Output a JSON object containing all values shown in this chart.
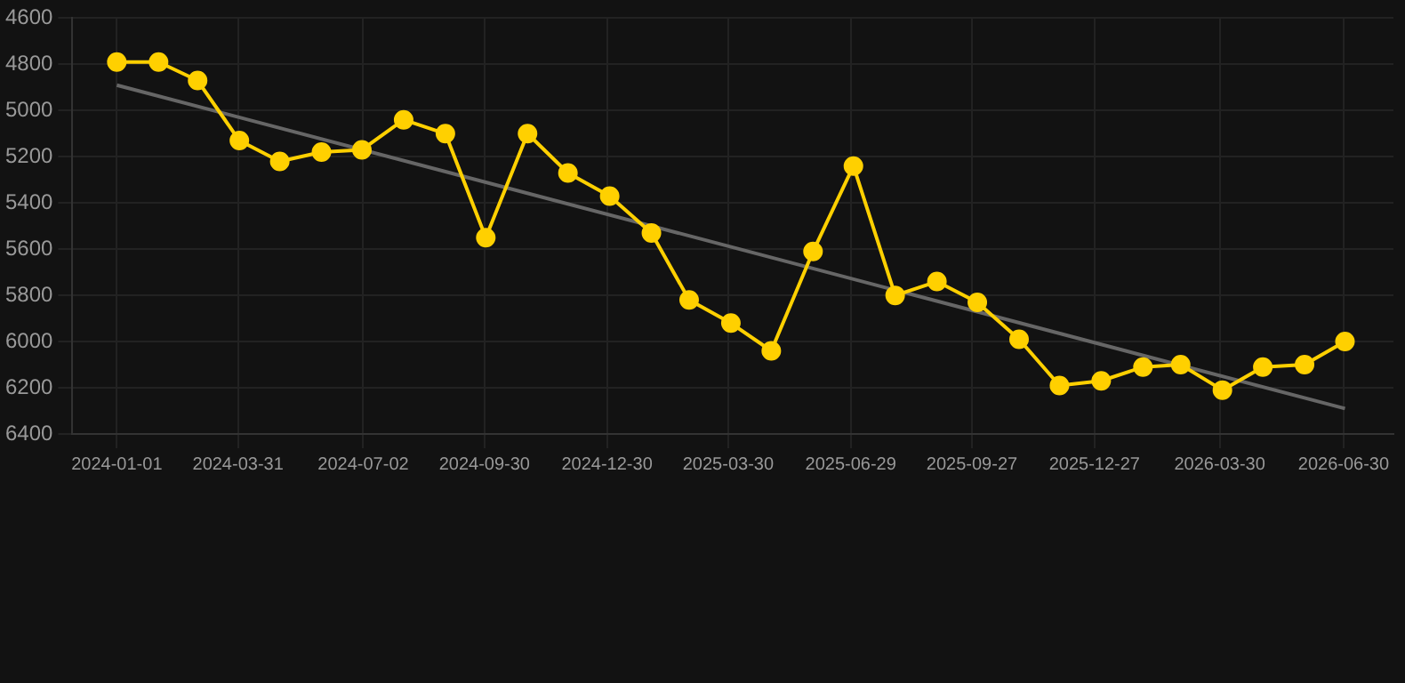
{
  "chart_data": {
    "type": "line",
    "x": [
      "2024-01-01",
      "2024-02-01",
      "2024-03-01",
      "2024-04-01",
      "2024-05-01",
      "2024-06-01",
      "2024-07-01",
      "2024-08-01",
      "2024-09-01",
      "2024-10-01",
      "2024-11-01",
      "2024-12-01",
      "2025-01-01",
      "2025-02-01",
      "2025-03-01",
      "2025-04-01",
      "2025-05-01",
      "2025-06-01",
      "2025-07-01",
      "2025-08-01",
      "2025-09-01",
      "2025-10-01",
      "2025-11-01",
      "2025-12-01",
      "2026-01-01",
      "2026-02-01",
      "2026-03-01",
      "2026-04-01",
      "2026-05-01",
      "2026-06-01",
      "2026-07-01"
    ],
    "series": [
      {
        "color": "#ffd000",
        "marker": "circle",
        "values": [
          4790,
          4790,
          4870,
          5130,
          5220,
          5180,
          5170,
          5040,
          5100,
          5550,
          5100,
          5270,
          5370,
          5530,
          5820,
          5920,
          6040,
          5610,
          5240,
          5800,
          5740,
          5830,
          5990,
          6190,
          6170,
          6110,
          6100,
          6210,
          6110,
          6100,
          6000
        ]
      },
      {
        "type": "line",
        "color": "#666666",
        "marker": "none",
        "x": [
          "2024-01-01",
          "2026-07-01"
        ],
        "values": [
          4890,
          6290
        ]
      }
    ],
    "xlim": [
      "2023-11-29",
      "2026-08-06"
    ],
    "xticks": [
      "2024-01-01",
      "2024-03-31",
      "2024-07-02",
      "2024-09-30",
      "2024-12-30",
      "2025-03-30",
      "2025-06-29",
      "2025-09-27",
      "2025-12-27",
      "2026-03-30",
      "2026-06-30"
    ],
    "ylim": [
      6400,
      4600
    ],
    "yticks": [
      4600,
      4800,
      5000,
      5200,
      5400,
      5600,
      5800,
      6000,
      6200,
      6400
    ],
    "grid": true
  }
}
